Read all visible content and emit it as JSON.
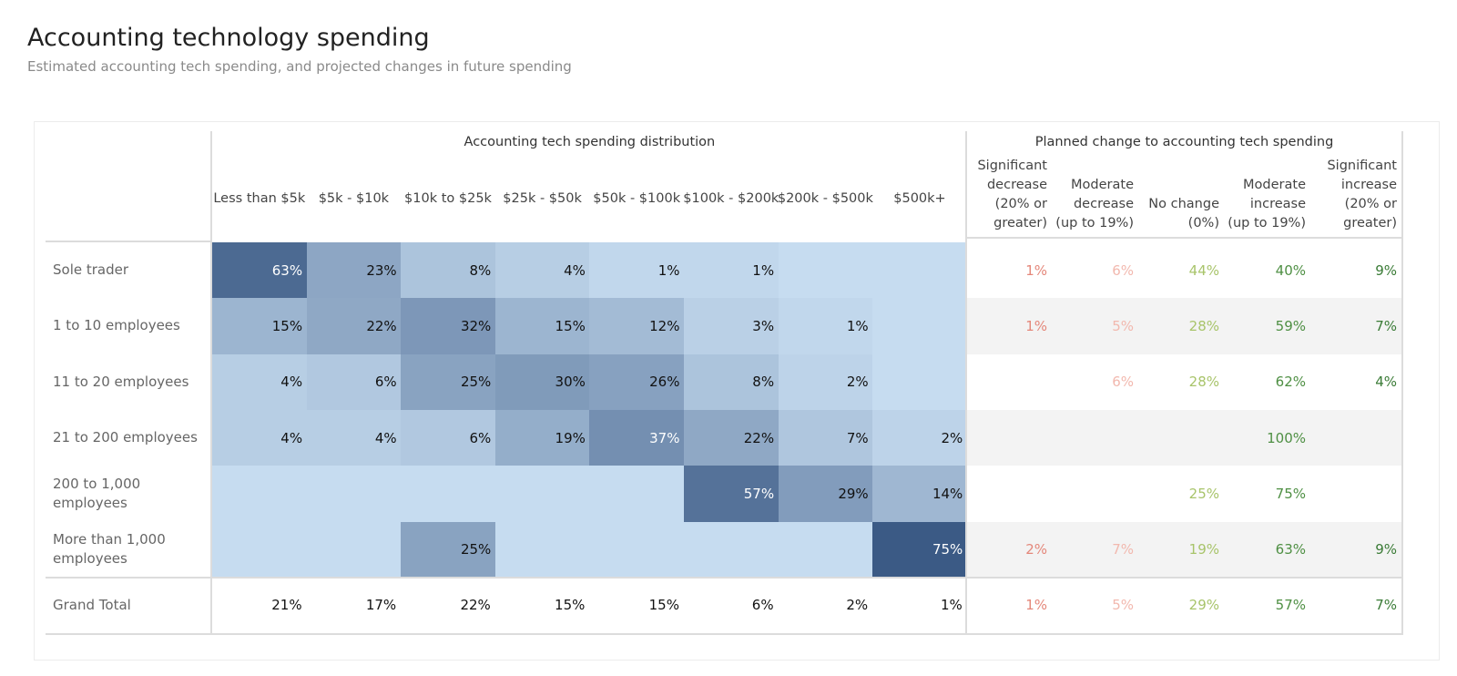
{
  "header": {
    "title": "Accounting technology spending",
    "subtitle": "Estimated accounting tech spending, and projected changes in future spending"
  },
  "colors": {
    "heat_scale_low": "#c6dcf0",
    "heat_scale_high": "#3b5a85",
    "significant_decrease": "#e4877a",
    "moderate_decrease": "#f2b8ae",
    "no_change": "#a8c46a",
    "moderate_increase": "#4e8f43",
    "significant_increase": "#3a7b36",
    "band": "#f3f3f3"
  },
  "chart_data": [
    {
      "type": "heatmap",
      "title": "Accounting tech spending distribution",
      "columns": [
        "Less than $5k",
        "$5k - $10k",
        "$10k to $25k",
        "$25k - $50k",
        "$50k - $100k",
        "$100k - $200k",
        "$200k - $500k",
        "$500k+"
      ],
      "rows": [
        "Sole trader",
        "1 to 10 employees",
        "11 to 20 employees",
        "21 to 200 employees",
        "200 to 1,000 employees",
        "More than 1,000 employees"
      ],
      "values": [
        [
          "63%",
          "23%",
          "8%",
          "4%",
          "1%",
          "1%",
          "",
          ""
        ],
        [
          "15%",
          "22%",
          "32%",
          "15%",
          "12%",
          "3%",
          "1%",
          ""
        ],
        [
          "4%",
          "6%",
          "25%",
          "30%",
          "26%",
          "8%",
          "2%",
          ""
        ],
        [
          "4%",
          "4%",
          "6%",
          "19%",
          "37%",
          "22%",
          "7%",
          "2%"
        ],
        [
          "",
          "",
          "",
          "",
          "",
          "57%",
          "29%",
          "14%"
        ],
        [
          "",
          "",
          "25%",
          "",
          "",
          "",
          "",
          "75%"
        ]
      ],
      "total_label": "Grand Total",
      "totals": [
        "21%",
        "17%",
        "22%",
        "15%",
        "15%",
        "6%",
        "2%",
        "1%"
      ]
    },
    {
      "type": "table",
      "title": "Planned change to accounting tech spending",
      "columns": [
        [
          "Significant",
          "decrease",
          "(20% or",
          "greater)"
        ],
        [
          "Moderate",
          "decrease",
          "(up to 19%)"
        ],
        [
          "No change",
          "(0%)"
        ],
        [
          "Moderate",
          "increase",
          "(up to 19%)"
        ],
        [
          "Significant",
          "increase",
          "(20% or",
          "greater)"
        ]
      ],
      "rows": [
        "Sole trader",
        "1 to 10 employees",
        "11 to 20 employees",
        "21 to 200 employees",
        "200 to 1,000 employees",
        "More than 1,000 employees"
      ],
      "values": [
        [
          "1%",
          "6%",
          "44%",
          "40%",
          "9%"
        ],
        [
          "1%",
          "5%",
          "28%",
          "59%",
          "7%"
        ],
        [
          "",
          "6%",
          "28%",
          "62%",
          "4%"
        ],
        [
          "",
          "",
          "",
          "100%",
          ""
        ],
        [
          "",
          "",
          "25%",
          "75%",
          ""
        ],
        [
          "2%",
          "7%",
          "19%",
          "63%",
          "9%"
        ]
      ],
      "total_label": "Grand Total",
      "totals": [
        "1%",
        "5%",
        "29%",
        "57%",
        "7%"
      ]
    }
  ]
}
